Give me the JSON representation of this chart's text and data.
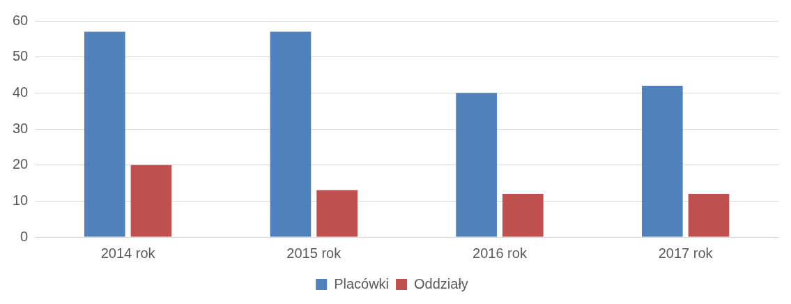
{
  "chart_data": {
    "type": "bar",
    "categories": [
      "2014 rok",
      "2015 rok",
      "2016 rok",
      "2017 rok"
    ],
    "series": [
      {
        "name": "Placówki",
        "color": "#4f81bd",
        "values": [
          57,
          57,
          40,
          42
        ]
      },
      {
        "name": "Oddziały",
        "color": "#c0504d",
        "values": [
          20,
          13,
          12,
          12
        ]
      }
    ],
    "ylim": [
      0,
      60
    ],
    "yticks": [
      0,
      10,
      20,
      30,
      40,
      50,
      60
    ],
    "grid": "y",
    "legend": "bottom"
  }
}
